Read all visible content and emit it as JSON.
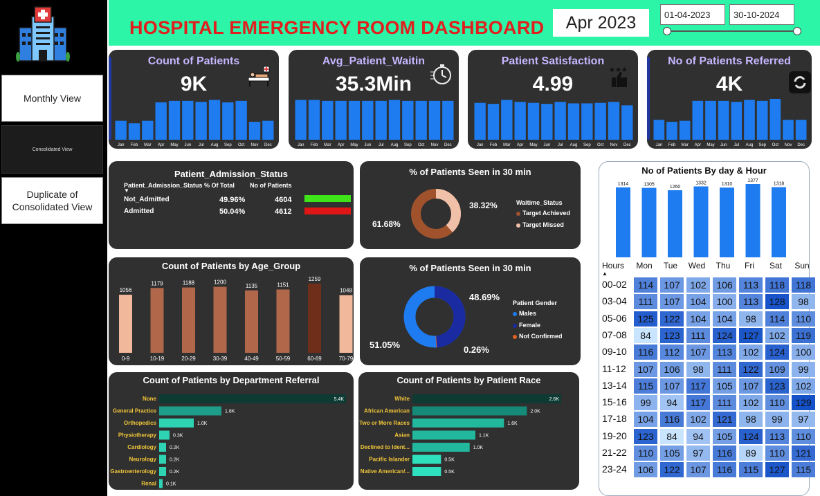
{
  "nav": {
    "monthly": "Monthly View",
    "consolidated": "Consolidated View",
    "duplicate": "Duplicate of Consolidated View"
  },
  "header": {
    "title": "HOSPITAL  EMERGENCY ROOM DASHBOARD",
    "month": "Apr 2023",
    "date_from": "01-04-2023",
    "date_to": "30-10-2024"
  },
  "colors": {
    "accent": "#2cf5a8",
    "bar": "#1e7cf0",
    "title": "#e0201e",
    "kpi_title": "#c6b6ff"
  },
  "kpis": [
    {
      "title": "Count of Patients",
      "value": "9K",
      "icon": "hospital-bed-icon"
    },
    {
      "title": "Avg_Patient_Waitin",
      "value": "35.3Min",
      "icon": "stopwatch-icon"
    },
    {
      "title": "Patient Satisfaction",
      "value": "4.99",
      "icon": "thumbs-up-stars-icon"
    },
    {
      "title": "No of Patients Referred",
      "value": "4K",
      "icon": "refer-icon"
    }
  ],
  "months": [
    "Jan",
    "Feb",
    "Mar",
    "Apr",
    "May",
    "Jun",
    "Jul",
    "Aug",
    "Sep",
    "Oct",
    "Nov",
    "Dec"
  ],
  "admission": {
    "title": "Patient_Admission_Status",
    "headers": [
      "Patient_Admission_Status",
      "% Of Total",
      "No of Patients"
    ],
    "rows": [
      {
        "status": "Not_Admitted",
        "pct": "49.96%",
        "count": "4604",
        "color": "#3ee31a"
      },
      {
        "status": "Admitted",
        "pct": "50.04%",
        "count": "4612",
        "color": "#e01515"
      }
    ]
  },
  "seen30": {
    "title": "% of Patients Seen in 30 min",
    "legend_title": "Waitime_Status",
    "left_label": "61.68%",
    "right_label": "38.32%",
    "items": [
      {
        "label": "Target Achieved",
        "color": "#a0522d"
      },
      {
        "label": "Target Missed",
        "color": "#f0c0a8"
      }
    ]
  },
  "gender": {
    "title": "% of Patients Seen in 30 min",
    "legend_title": "Patient Gender",
    "labels": [
      "48.69%",
      "51.05%",
      "0.26%"
    ],
    "items": [
      {
        "label": "Males",
        "color": "#1e7cf0"
      },
      {
        "label": "Female",
        "color": "#1a2aa0"
      },
      {
        "label": "Not Confirmed",
        "color": "#e06020"
      }
    ]
  },
  "age": {
    "title": "Count of Patients by Age_Group"
  },
  "dept": {
    "title": "Count of Patients by Department Referral"
  },
  "race": {
    "title": "Count of Patients by Patient Race"
  },
  "dayhour": {
    "title": "No of Patients By day & Hour",
    "hours_label": "Hours",
    "days": [
      "Mon",
      "Tue",
      "Wed",
      "Thu",
      "Fri",
      "Sat",
      "Sun"
    ],
    "hours": [
      "00-02",
      "03-04",
      "05-06",
      "07-08",
      "09-10",
      "11-12",
      "13-14",
      "15-16",
      "17-18",
      "19-20",
      "21-22",
      "23-24"
    ]
  },
  "chart_data": [
    {
      "type": "bar",
      "categories": [
        "Jan",
        "Feb",
        "Mar",
        "Apr",
        "May",
        "Jun",
        "Jul",
        "Aug",
        "Sep",
        "Oct",
        "Nov",
        "Dec"
      ],
      "values": [
        38,
        33,
        38,
        75,
        78,
        78,
        76,
        80,
        75,
        78,
        36,
        38
      ]
    },
    {
      "type": "bar",
      "categories": [
        "Jan",
        "Feb",
        "Mar",
        "Apr",
        "May",
        "Jun",
        "Jul",
        "Aug",
        "Sep",
        "Oct",
        "Nov",
        "Dec"
      ],
      "values": [
        80,
        80,
        78,
        78,
        78,
        78,
        78,
        80,
        78,
        78,
        78,
        78
      ]
    },
    {
      "type": "bar",
      "categories": [
        "Jan",
        "Feb",
        "Mar",
        "Apr",
        "May",
        "Jun",
        "Jul",
        "Aug",
        "Sep",
        "Oct",
        "Nov",
        "Dec"
      ],
      "values": [
        74,
        72,
        80,
        76,
        74,
        72,
        76,
        73,
        73,
        74,
        76,
        69
      ]
    },
    {
      "type": "bar",
      "categories": [
        "Jan",
        "Feb",
        "Mar",
        "Apr",
        "May",
        "Jun",
        "Jul",
        "Aug",
        "Sep",
        "Oct",
        "Nov",
        "Dec"
      ],
      "values": [
        40,
        36,
        38,
        78,
        78,
        78,
        76,
        80,
        78,
        82,
        40,
        40
      ]
    },
    {
      "type": "bar",
      "title": "Count of Patients by Age_Group",
      "categories": [
        "0-9",
        "10-19",
        "20-29",
        "30-39",
        "40-49",
        "50-59",
        "60-69",
        "70-79"
      ],
      "values": [
        1056,
        1179,
        1188,
        1200,
        1135,
        1151,
        1259,
        1048
      ]
    },
    {
      "type": "bar",
      "orientation": "horizontal",
      "title": "Count of Patients by Department Referral",
      "categories": [
        "None",
        "General Practice",
        "Orthopedics",
        "Physiotherapy",
        "Cardiology",
        "Neurology",
        "Gastroenterology",
        "Renal"
      ],
      "values": [
        5.4,
        1.8,
        1.0,
        0.3,
        0.2,
        0.2,
        0.2,
        0.1
      ],
      "labels": [
        "5.4K",
        "1.8K",
        "1.0K",
        "0.3K",
        "0.2K",
        "0.2K",
        "0.2K",
        "0.1K"
      ]
    },
    {
      "type": "bar",
      "orientation": "horizontal",
      "title": "Count of Patients by Patient Race",
      "categories": [
        "White",
        "African American",
        "Two or More Races",
        "Asian",
        "Declined to Ident...",
        "Pacific Islander",
        "Native American/..."
      ],
      "values": [
        2.6,
        2.0,
        1.6,
        1.1,
        1.0,
        0.5,
        0.5
      ],
      "labels": [
        "2.6K",
        "2.0K",
        "1.6K",
        "1.1K",
        "1.0K",
        "0.5K",
        "0.5K"
      ]
    },
    {
      "type": "bar",
      "title": "No of Patients By day & Hour",
      "categories": [
        "Mon",
        "Tue",
        "Wed",
        "Thu",
        "Fri",
        "Sat",
        "Sun"
      ],
      "values": [
        1314,
        1305,
        1260,
        1332,
        1310,
        1377,
        1318
      ]
    },
    {
      "type": "heatmap",
      "title": "No of Patients By day & Hour",
      "x": [
        "Mon",
        "Tue",
        "Wed",
        "Thu",
        "Fri",
        "Sat",
        "Sun"
      ],
      "y": [
        "00-02",
        "03-04",
        "05-06",
        "07-08",
        "09-10",
        "11-12",
        "13-14",
        "15-16",
        "17-18",
        "19-20",
        "21-22",
        "23-24"
      ],
      "values": [
        [
          114,
          107,
          102,
          106,
          113,
          118,
          118
        ],
        [
          111,
          107,
          104,
          100,
          113,
          128,
          98
        ],
        [
          125,
          122,
          104,
          104,
          98,
          114,
          110
        ],
        [
          84,
          123,
          111,
          124,
          127,
          102,
          119
        ],
        [
          116,
          112,
          107,
          113,
          102,
          124,
          100
        ],
        [
          107,
          106,
          98,
          111,
          122,
          109,
          99
        ],
        [
          115,
          107,
          117,
          105,
          107,
          123,
          102
        ],
        [
          99,
          94,
          117,
          111,
          102,
          110,
          129
        ],
        [
          104,
          116,
          102,
          121,
          98,
          99,
          97
        ],
        [
          123,
          84,
          94,
          105,
          124,
          113,
          110
        ],
        [
          110,
          105,
          97,
          116,
          89,
          110,
          121
        ],
        [
          106,
          122,
          107,
          116,
          115,
          127,
          115
        ]
      ]
    }
  ]
}
